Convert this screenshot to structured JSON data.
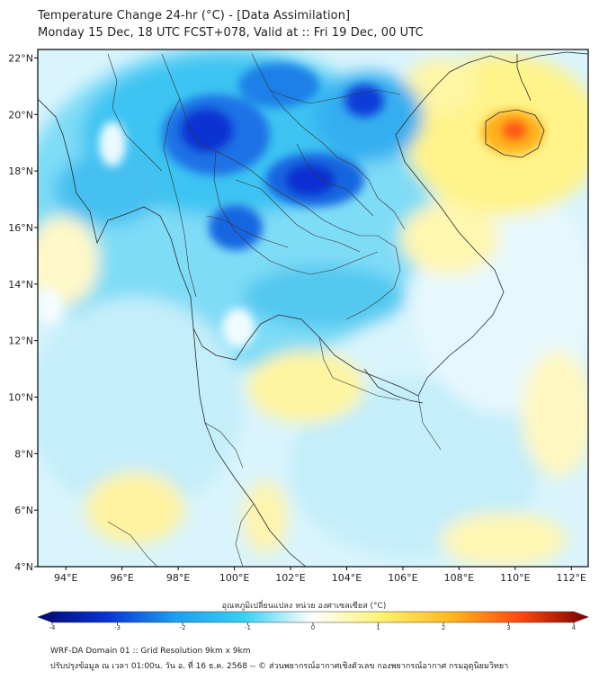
{
  "header": {
    "title_line1": "Temperature Change 24-hr (°C) - [Data Assimilation]",
    "title_line2": "Monday 15 Dec, 18 UTC FCST+078, Valid at :: Fri 19 Dec, 00 UTC"
  },
  "map": {
    "lat_labels": [
      "22°N",
      "20°N",
      "18°N",
      "16°N",
      "14°N",
      "12°N",
      "10°N",
      "8°N",
      "6°N",
      "4°N"
    ],
    "lon_labels": [
      "94°E",
      "96°E",
      "98°E",
      "100°E",
      "102°E",
      "104°E",
      "106°E",
      "108°E",
      "110°E",
      "112°E"
    ],
    "lat_values": [
      22,
      20,
      18,
      16,
      14,
      12,
      10,
      8,
      6,
      4
    ],
    "lon_values": [
      94,
      96,
      98,
      100,
      102,
      104,
      106,
      108,
      110,
      112
    ],
    "lat_range": [
      4,
      22.3
    ],
    "lon_range": [
      93,
      112.6
    ],
    "field": "24-hr temperature change",
    "features": [
      {
        "name": "cold-core-north-myanmar",
        "lon": 98.8,
        "lat": 19.4,
        "value": -3.2
      },
      {
        "name": "cold-core-northeast-thailand",
        "lon": 102.8,
        "lat": 17.6,
        "value": -3.5
      },
      {
        "name": "cold-core-central-thailand",
        "lon": 99.8,
        "lat": 16.0,
        "value": -2.8
      },
      {
        "name": "cold-core-north-laos",
        "lon": 104.5,
        "lat": 20.4,
        "value": -3.0
      },
      {
        "name": "warm-core-hainan",
        "lon": 110.0,
        "lat": 19.3,
        "value": 2.8
      },
      {
        "name": "warm-area-gulf-of-tonkin",
        "lon": 107.5,
        "lat": 20.5,
        "value": 1.0
      },
      {
        "name": "warm-area-gulf-of-thailand",
        "lon": 102.8,
        "lat": 10.0,
        "value": 0.8
      },
      {
        "name": "warm-area-south-china-sea",
        "lon": 108.5,
        "lat": 14.0,
        "value": 0.5
      }
    ]
  },
  "colorbar": {
    "title": "อุณหภูมิเปลี่ยนแปลง หน่วย องศาเซลเซียส (°C)",
    "min": -4,
    "max": 4,
    "ticks": [
      "-4",
      "-3",
      "-2",
      "-1",
      "0",
      "1",
      "2",
      "3",
      "4"
    ],
    "tick_values": [
      -4,
      -3,
      -2,
      -1,
      0,
      1,
      2,
      3,
      4
    ],
    "stops": [
      {
        "v": -4,
        "color": "#000a6e"
      },
      {
        "v": -3,
        "color": "#0a32d2"
      },
      {
        "v": -2,
        "color": "#1e9ef0"
      },
      {
        "v": -1,
        "color": "#38d0f4"
      },
      {
        "v": -0.3,
        "color": "#c8f2fc"
      },
      {
        "v": 0,
        "color": "#ffffff"
      },
      {
        "v": 0.3,
        "color": "#fffbd2"
      },
      {
        "v": 1,
        "color": "#fff26e"
      },
      {
        "v": 2,
        "color": "#ffb820"
      },
      {
        "v": 3,
        "color": "#ff4a10"
      },
      {
        "v": 4,
        "color": "#7a0000"
      }
    ]
  },
  "footer": {
    "line1": "WRF-DA Domain 01 :: Grid Resolution 9km x 9km",
    "line2": "ปรับปรุงข้อมูล ณ เวลา 01:00น. วัน อ. ที่ 16 ธ.ค. 2568 -- © ส่วนพยากรณ์อากาศเชิงตัวเลข กองพยากรณ์อากาศ กรมอุตุนิยมวิทยา"
  }
}
